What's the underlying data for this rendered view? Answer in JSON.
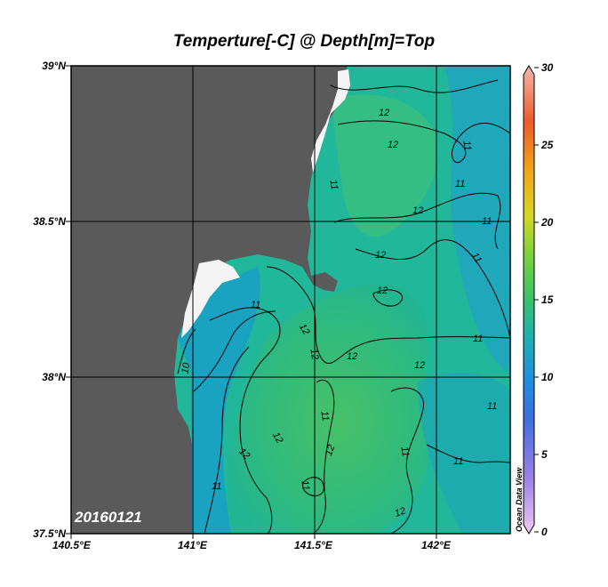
{
  "title": "Temperture[-C] @ Depth[m]=Top",
  "date_stamp": "20160121",
  "watermark": "Ocean Data View",
  "lat_labels": [
    "39°N",
    "38.5°N",
    "38°N",
    "37.5°N"
  ],
  "lon_labels": [
    "140.5°E",
    "141°E",
    "141.5°E",
    "142°E"
  ],
  "colorbar": {
    "ticks": [
      "30",
      "25",
      "20",
      "15",
      "10",
      "5",
      "0"
    ],
    "range": [
      0,
      30
    ]
  },
  "contour_labels": [
    "10",
    "11",
    "11",
    "11",
    "11",
    "11",
    "11",
    "11",
    "11",
    "11",
    "11",
    "11",
    "11",
    "11",
    "12",
    "12",
    "12",
    "12",
    "12",
    "12",
    "12",
    "12",
    "12",
    "12",
    "12",
    "12",
    "12"
  ],
  "colors": {
    "land": "#5a5a5a",
    "ocean_main": "#22b88f",
    "ocean_warm": "#3bc06c",
    "ocean_cool": "#1aa0c8",
    "ice": "#f4f4f4"
  }
}
